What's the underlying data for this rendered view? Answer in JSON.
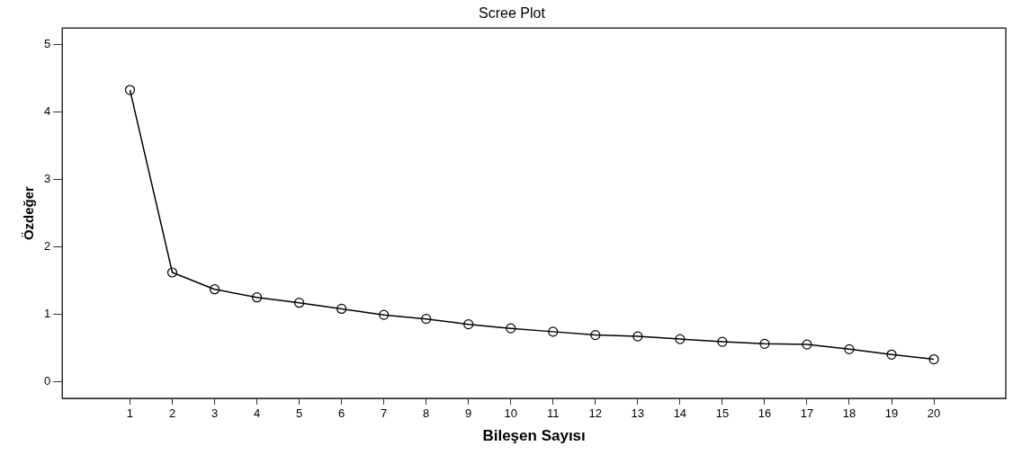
{
  "chart_data": {
    "type": "line",
    "title": "Scree Plot",
    "xlabel": "Bileşen Sayısı",
    "ylabel": "Özdeğer",
    "x": [
      1,
      2,
      3,
      4,
      5,
      6,
      7,
      8,
      9,
      10,
      11,
      12,
      13,
      14,
      15,
      16,
      17,
      18,
      19,
      20
    ],
    "series": [
      {
        "color": "#000000",
        "values": [
          4.33,
          1.62,
          1.37,
          1.25,
          1.17,
          1.08,
          0.99,
          0.93,
          0.85,
          0.79,
          0.74,
          0.69,
          0.67,
          0.63,
          0.59,
          0.56,
          0.55,
          0.48,
          0.4,
          0.33
        ]
      }
    ],
    "xlim": [
      -0.6,
      21.7
    ],
    "xticks": [
      1,
      2,
      3,
      4,
      5,
      6,
      7,
      8,
      9,
      10,
      11,
      12,
      13,
      14,
      15,
      16,
      17,
      18,
      19,
      20
    ],
    "ylim": [
      -0.25,
      5.25
    ],
    "yticks": [
      0,
      1,
      2,
      3,
      4,
      5
    ],
    "grid": false,
    "legend": false,
    "marker": "circle",
    "line_style": "solid"
  }
}
